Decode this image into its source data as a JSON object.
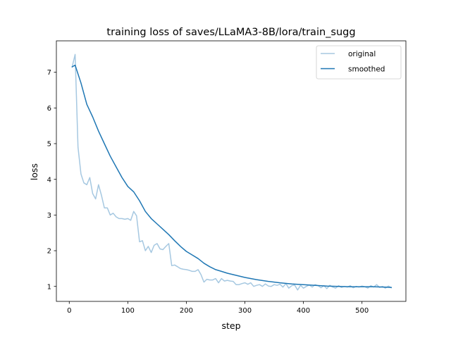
{
  "chart_data": {
    "type": "line",
    "title": "training loss of saves/LLaMA3-8B/lora/train_sugg",
    "xlabel": "step",
    "ylabel": "loss",
    "xlim": [
      -22,
      575
    ],
    "ylim": [
      0.58,
      7.88
    ],
    "xticks": [
      0,
      100,
      200,
      300,
      400,
      500
    ],
    "yticks": [
      1,
      2,
      3,
      4,
      5,
      6,
      7
    ],
    "grid": false,
    "legend_position": "top-right",
    "series": [
      {
        "name": "original",
        "color": "#a6c8e1",
        "x": [
          5,
          10,
          15,
          20,
          25,
          30,
          35,
          40,
          45,
          50,
          55,
          60,
          65,
          70,
          75,
          80,
          85,
          90,
          95,
          100,
          105,
          110,
          115,
          120,
          125,
          130,
          135,
          140,
          145,
          150,
          155,
          160,
          165,
          170,
          175,
          180,
          185,
          190,
          195,
          200,
          205,
          210,
          215,
          220,
          225,
          230,
          235,
          240,
          245,
          250,
          255,
          260,
          265,
          270,
          275,
          280,
          285,
          290,
          295,
          300,
          305,
          310,
          315,
          320,
          325,
          330,
          335,
          340,
          345,
          350,
          355,
          360,
          365,
          370,
          375,
          380,
          385,
          390,
          395,
          400,
          405,
          410,
          415,
          420,
          425,
          430,
          435,
          440,
          445,
          450,
          455,
          460,
          465,
          470,
          475,
          480,
          485,
          490,
          495,
          500,
          505,
          510,
          515,
          520,
          525,
          530,
          535,
          540,
          545,
          550
        ],
        "y": [
          7.15,
          7.5,
          4.9,
          4.15,
          3.9,
          3.85,
          4.05,
          3.6,
          3.45,
          3.85,
          3.55,
          3.2,
          3.2,
          3.0,
          3.05,
          2.95,
          2.9,
          2.9,
          2.88,
          2.9,
          2.85,
          3.1,
          2.98,
          2.25,
          2.28,
          2.0,
          2.12,
          1.95,
          2.15,
          2.2,
          2.05,
          2.03,
          2.12,
          2.2,
          1.58,
          1.6,
          1.55,
          1.5,
          1.48,
          1.47,
          1.45,
          1.42,
          1.42,
          1.47,
          1.33,
          1.12,
          1.2,
          1.18,
          1.18,
          1.22,
          1.1,
          1.22,
          1.15,
          1.17,
          1.15,
          1.14,
          1.05,
          1.05,
          1.08,
          1.1,
          1.06,
          1.1,
          1.0,
          1.03,
          1.05,
          1.0,
          1.07,
          1.01,
          1.0,
          1.05,
          1.03,
          1.06,
          0.98,
          1.08,
          0.95,
          1.02,
          1.04,
          0.9,
          1.03,
          0.95,
          1.0,
          1.04,
          0.98,
          1.05,
          1.02,
          0.96,
          1.02,
          0.94,
          1.03,
          0.98,
          0.95,
          1.02,
          0.97,
          1.0,
          0.98,
          1.02,
          0.96,
          1.0,
          0.98,
          1.01,
          0.99,
          0.95,
          1.02,
          0.98,
          1.05,
          0.97,
          1.0,
          0.95,
          1.01,
          0.96
        ]
      },
      {
        "name": "smoothed",
        "color": "#1f77b4",
        "x": [
          5,
          10,
          20,
          30,
          40,
          50,
          60,
          70,
          80,
          90,
          100,
          110,
          120,
          130,
          140,
          150,
          160,
          170,
          180,
          190,
          200,
          210,
          220,
          230,
          240,
          250,
          260,
          270,
          280,
          290,
          300,
          320,
          340,
          360,
          380,
          400,
          420,
          440,
          460,
          480,
          500,
          520,
          540,
          550
        ],
        "y": [
          7.15,
          7.2,
          6.7,
          6.1,
          5.75,
          5.35,
          5.0,
          4.65,
          4.35,
          4.05,
          3.8,
          3.65,
          3.4,
          3.1,
          2.9,
          2.75,
          2.6,
          2.45,
          2.28,
          2.12,
          1.98,
          1.88,
          1.78,
          1.65,
          1.55,
          1.47,
          1.42,
          1.37,
          1.33,
          1.29,
          1.25,
          1.19,
          1.14,
          1.1,
          1.07,
          1.05,
          1.03,
          1.01,
          1.0,
          0.99,
          0.99,
          0.99,
          0.98,
          0.97
        ]
      }
    ]
  }
}
